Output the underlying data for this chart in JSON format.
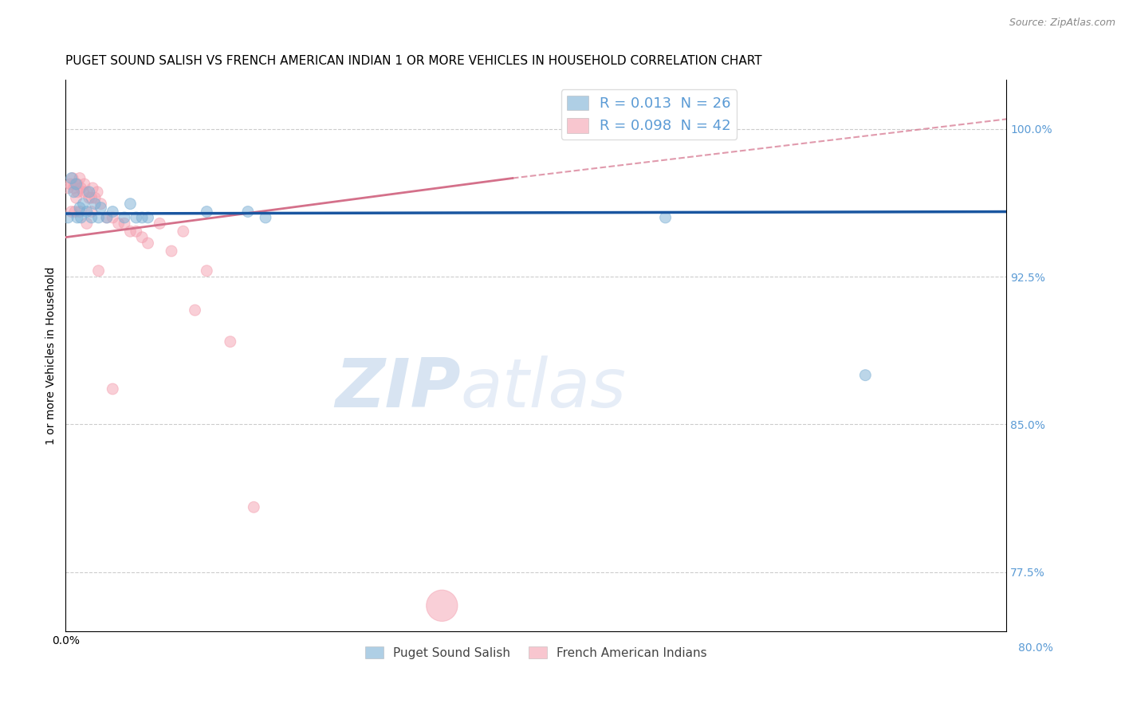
{
  "title": "PUGET SOUND SALISH VS FRENCH AMERICAN INDIAN 1 OR MORE VEHICLES IN HOUSEHOLD CORRELATION CHART",
  "source": "Source: ZipAtlas.com",
  "ylabel": "1 or more Vehicles in Household",
  "x_min": 0.0,
  "x_max": 0.8,
  "y_min": 0.745,
  "y_max": 1.025,
  "right_yticks": [
    1.0,
    0.925,
    0.85,
    0.775
  ],
  "right_ytick_labels": [
    "100.0%",
    "92.5%",
    "85.0%",
    "77.5%"
  ],
  "bottom_right_label": "80.0%",
  "legend_r_entries": [
    {
      "r_label": "R = ",
      "r_value": "0.013",
      "n_label": "  N = ",
      "n_value": "26",
      "color": "#7bafd4"
    },
    {
      "r_label": "R = ",
      "r_value": "0.098",
      "n_label": "  N = ",
      "n_value": "42",
      "color": "#f4a0b0"
    }
  ],
  "watermark_zip": "ZIP",
  "watermark_atlas": "atlas",
  "blue_scatter_x": [
    0.002,
    0.005,
    0.007,
    0.009,
    0.01,
    0.012,
    0.013,
    0.015,
    0.018,
    0.02,
    0.022,
    0.025,
    0.028,
    0.03,
    0.035,
    0.04,
    0.05,
    0.055,
    0.06,
    0.065,
    0.07,
    0.12,
    0.155,
    0.17,
    0.51,
    0.68
  ],
  "blue_scatter_y": [
    0.955,
    0.975,
    0.968,
    0.972,
    0.955,
    0.96,
    0.955,
    0.962,
    0.958,
    0.968,
    0.955,
    0.962,
    0.955,
    0.96,
    0.955,
    0.958,
    0.955,
    0.962,
    0.955,
    0.955,
    0.955,
    0.958,
    0.958,
    0.955,
    0.955,
    0.875
  ],
  "blue_scatter_size": [
    100,
    100,
    100,
    100,
    100,
    100,
    100,
    100,
    100,
    100,
    100,
    100,
    100,
    100,
    100,
    100,
    100,
    100,
    100,
    100,
    100,
    100,
    100,
    100,
    100,
    100
  ],
  "pink_scatter_x": [
    0.002,
    0.004,
    0.006,
    0.007,
    0.008,
    0.009,
    0.01,
    0.01,
    0.012,
    0.013,
    0.015,
    0.016,
    0.018,
    0.02,
    0.022,
    0.023,
    0.025,
    0.027,
    0.03,
    0.035,
    0.04,
    0.045,
    0.05,
    0.055,
    0.06,
    0.065,
    0.07,
    0.08,
    0.09,
    0.1,
    0.11,
    0.12,
    0.14,
    0.16,
    0.005,
    0.008,
    0.012,
    0.018,
    0.022,
    0.028,
    0.04,
    0.32
  ],
  "pink_scatter_y": [
    0.97,
    0.972,
    0.975,
    0.97,
    0.972,
    0.965,
    0.972,
    0.968,
    0.975,
    0.97,
    0.968,
    0.972,
    0.968,
    0.965,
    0.965,
    0.97,
    0.965,
    0.968,
    0.962,
    0.955,
    0.955,
    0.952,
    0.952,
    0.948,
    0.948,
    0.945,
    0.942,
    0.952,
    0.938,
    0.948,
    0.908,
    0.928,
    0.892,
    0.808,
    0.958,
    0.958,
    0.958,
    0.952,
    0.958,
    0.928,
    0.868,
    0.758
  ],
  "pink_scatter_size": [
    100,
    100,
    100,
    100,
    100,
    100,
    100,
    100,
    100,
    100,
    100,
    100,
    100,
    100,
    100,
    100,
    100,
    100,
    100,
    100,
    100,
    100,
    100,
    100,
    100,
    100,
    100,
    100,
    100,
    100,
    100,
    100,
    100,
    100,
    100,
    100,
    100,
    100,
    100,
    100,
    100,
    800
  ],
  "blue_line_x": [
    0.0,
    0.8
  ],
  "blue_line_y": [
    0.957,
    0.958
  ],
  "pink_solid_line_x": [
    0.0,
    0.38
  ],
  "pink_solid_line_y": [
    0.945,
    0.975
  ],
  "pink_dashed_line_x": [
    0.38,
    0.8
  ],
  "pink_dashed_line_y": [
    0.975,
    1.005
  ],
  "grid_color": "#cccccc",
  "blue_color": "#7bafd4",
  "pink_color": "#f4a0b0",
  "blue_line_color": "#1a56a0",
  "pink_line_color": "#d4708a",
  "bg_color": "#ffffff",
  "title_fontsize": 11,
  "axis_label_fontsize": 10,
  "tick_fontsize": 10,
  "right_tick_color": "#5b9bd5",
  "source_color": "#888888",
  "legend_label_color": "#333333",
  "legend_value_color": "#5b9bd5"
}
